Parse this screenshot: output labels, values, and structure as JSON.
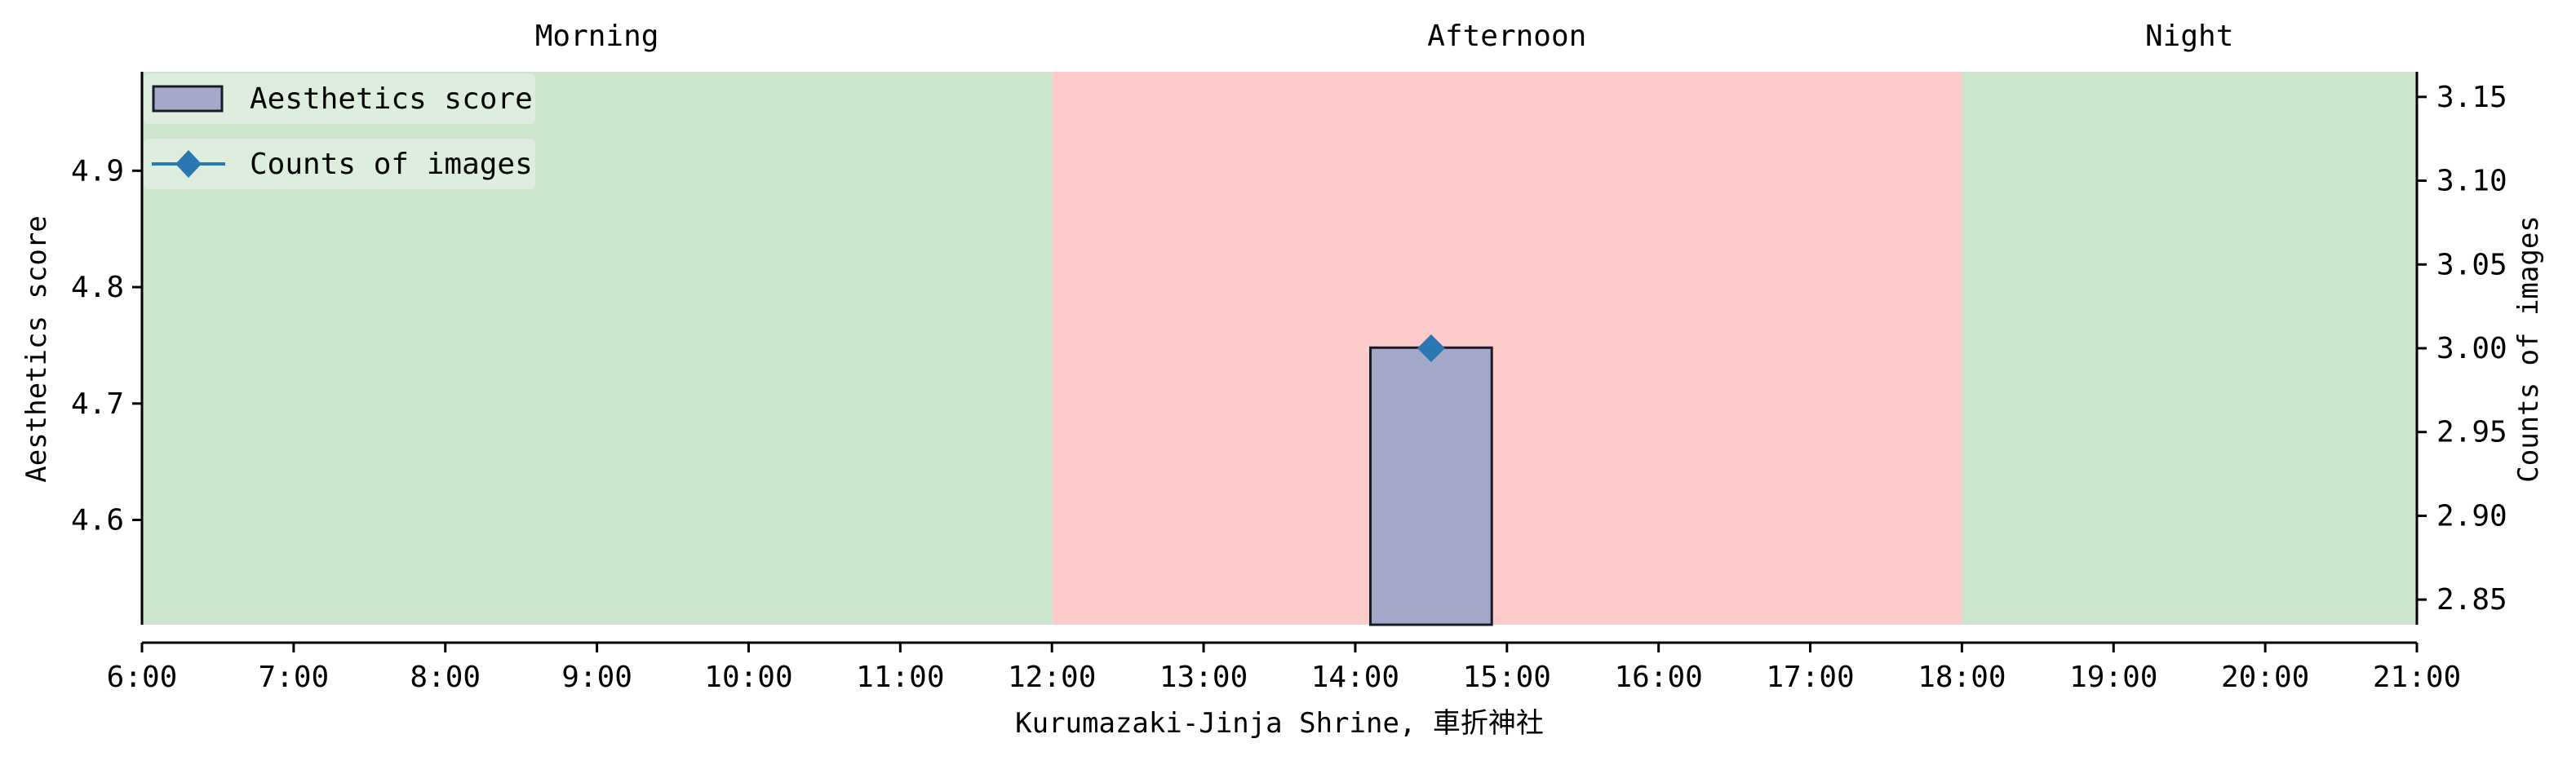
{
  "chart_data": {
    "type": "bar",
    "xlabel": "Kurumazaki-Jinja Shrine, 車折神社",
    "ylabel": "Aesthetics score",
    "y2label": "Counts of images",
    "x_range_hours": [
      6,
      21
    ],
    "x_ticks": [
      {
        "hour": 6,
        "label": "6:00"
      },
      {
        "hour": 7,
        "label": "7:00"
      },
      {
        "hour": 8,
        "label": "8:00"
      },
      {
        "hour": 9,
        "label": "9:00"
      },
      {
        "hour": 10,
        "label": "10:00"
      },
      {
        "hour": 11,
        "label": "11:00"
      },
      {
        "hour": 12,
        "label": "12:00"
      },
      {
        "hour": 13,
        "label": "13:00"
      },
      {
        "hour": 14,
        "label": "14:00"
      },
      {
        "hour": 15,
        "label": "15:00"
      },
      {
        "hour": 16,
        "label": "16:00"
      },
      {
        "hour": 17,
        "label": "17:00"
      },
      {
        "hour": 18,
        "label": "18:00"
      },
      {
        "hour": 19,
        "label": "19:00"
      },
      {
        "hour": 20,
        "label": "20:00"
      },
      {
        "hour": 21,
        "label": "21:00"
      }
    ],
    "ylim": [
      4.51,
      4.985
    ],
    "y_ticks": [
      {
        "value": 4.6,
        "label": "4.6"
      },
      {
        "value": 4.7,
        "label": "4.7"
      },
      {
        "value": 4.8,
        "label": "4.8"
      },
      {
        "value": 4.9,
        "label": "4.9"
      }
    ],
    "y2lim": [
      2.835,
      3.165
    ],
    "y2_ticks": [
      {
        "value": 2.85,
        "label": "2.85"
      },
      {
        "value": 2.9,
        "label": "2.90"
      },
      {
        "value": 2.95,
        "label": "2.95"
      },
      {
        "value": 3.0,
        "label": "3.00"
      },
      {
        "value": 3.05,
        "label": "3.05"
      },
      {
        "value": 3.1,
        "label": "3.10"
      },
      {
        "value": 3.15,
        "label": "3.15"
      }
    ],
    "periods": [
      {
        "label": "Morning",
        "start": 6,
        "end": 12,
        "color": "#cde5cd"
      },
      {
        "label": "Afternoon",
        "start": 12,
        "end": 18,
        "color": "#fecbcb"
      },
      {
        "label": "Night",
        "start": 18,
        "end": 21,
        "color": "#cde5cd"
      }
    ],
    "series": [
      {
        "name": "Aesthetics score",
        "kind": "bar",
        "color": "#a4a9c9",
        "edge": "#1a1a2a",
        "bars": [
          {
            "start": 14.1,
            "end": 14.9,
            "value": 4.748
          }
        ]
      },
      {
        "name": "Counts of images",
        "kind": "line",
        "color": "#2a77b4",
        "marker": "diamond",
        "points": [
          {
            "x": 14.5,
            "y": 3.0
          }
        ]
      }
    ],
    "legend": "top-left"
  }
}
